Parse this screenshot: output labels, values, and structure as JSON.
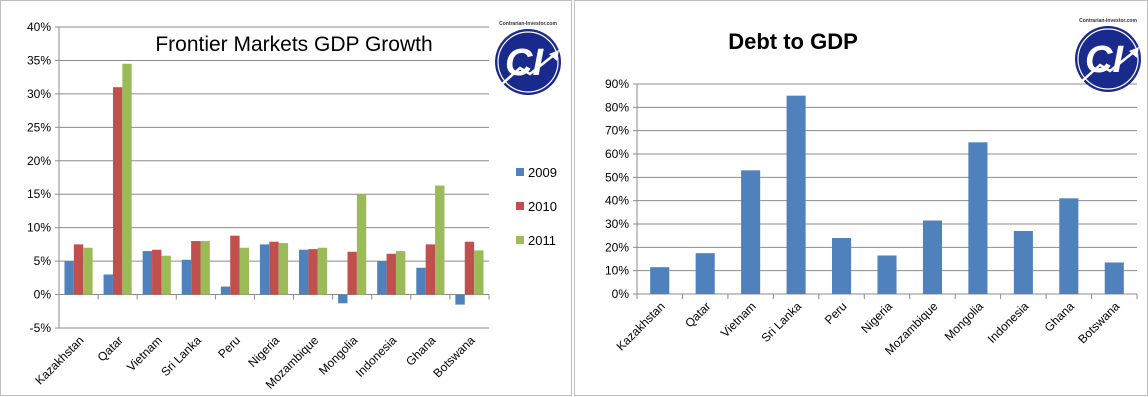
{
  "chart_data": [
    {
      "type": "bar",
      "title": "Frontier Markets GDP Growth",
      "categories": [
        "Kazakhstan",
        "Qatar",
        "Vietnam",
        "Sri Lanka",
        "Peru",
        "Nigeria",
        "Mozambique",
        "Mongolia",
        "Indonesia",
        "Ghana",
        "Botswana"
      ],
      "series": [
        {
          "name": "2009",
          "color": "#4f81bd",
          "values": [
            5.0,
            3.0,
            6.5,
            5.2,
            1.2,
            7.5,
            6.7,
            -1.3,
            5.0,
            4.0,
            -1.5
          ]
        },
        {
          "name": "2010",
          "color": "#c0504d",
          "values": [
            7.5,
            31.0,
            6.7,
            8.0,
            8.8,
            7.9,
            6.8,
            6.4,
            6.1,
            7.5,
            7.9
          ]
        },
        {
          "name": "2011",
          "color": "#9bbb59",
          "values": [
            7.0,
            34.5,
            5.8,
            8.0,
            7.0,
            7.7,
            7.0,
            15.0,
            6.5,
            16.3,
            6.6
          ]
        }
      ],
      "ylim": [
        -5,
        40
      ],
      "yticks": [
        "-5%",
        "0%",
        "5%",
        "10%",
        "15%",
        "20%",
        "25%",
        "30%",
        "35%",
        "40%"
      ],
      "grid": true,
      "legend": "right",
      "logo": {
        "text": "Contrarian-Investor.com",
        "mark": "CI"
      }
    },
    {
      "type": "bar",
      "title": "Debt to GDP",
      "categories": [
        "Kazakhstan",
        "Qatar",
        "Vietnam",
        "Sri Lanka",
        "Peru",
        "Nigeria",
        "Mozambique",
        "Mongolia",
        "Indonesia",
        "Ghana",
        "Botswana"
      ],
      "series": [
        {
          "color": "#4f81bd",
          "values": [
            11.5,
            17.5,
            53.0,
            85.0,
            24.0,
            16.5,
            31.5,
            65.0,
            27.0,
            41.0,
            13.5
          ]
        }
      ],
      "ylim": [
        0,
        90
      ],
      "yticks": [
        "0%",
        "10%",
        "20%",
        "30%",
        "40%",
        "50%",
        "60%",
        "70%",
        "80%",
        "90%"
      ],
      "grid": true,
      "legend": "none",
      "logo": {
        "text": "Contrarian-Investor.com",
        "mark": "CI"
      }
    }
  ]
}
